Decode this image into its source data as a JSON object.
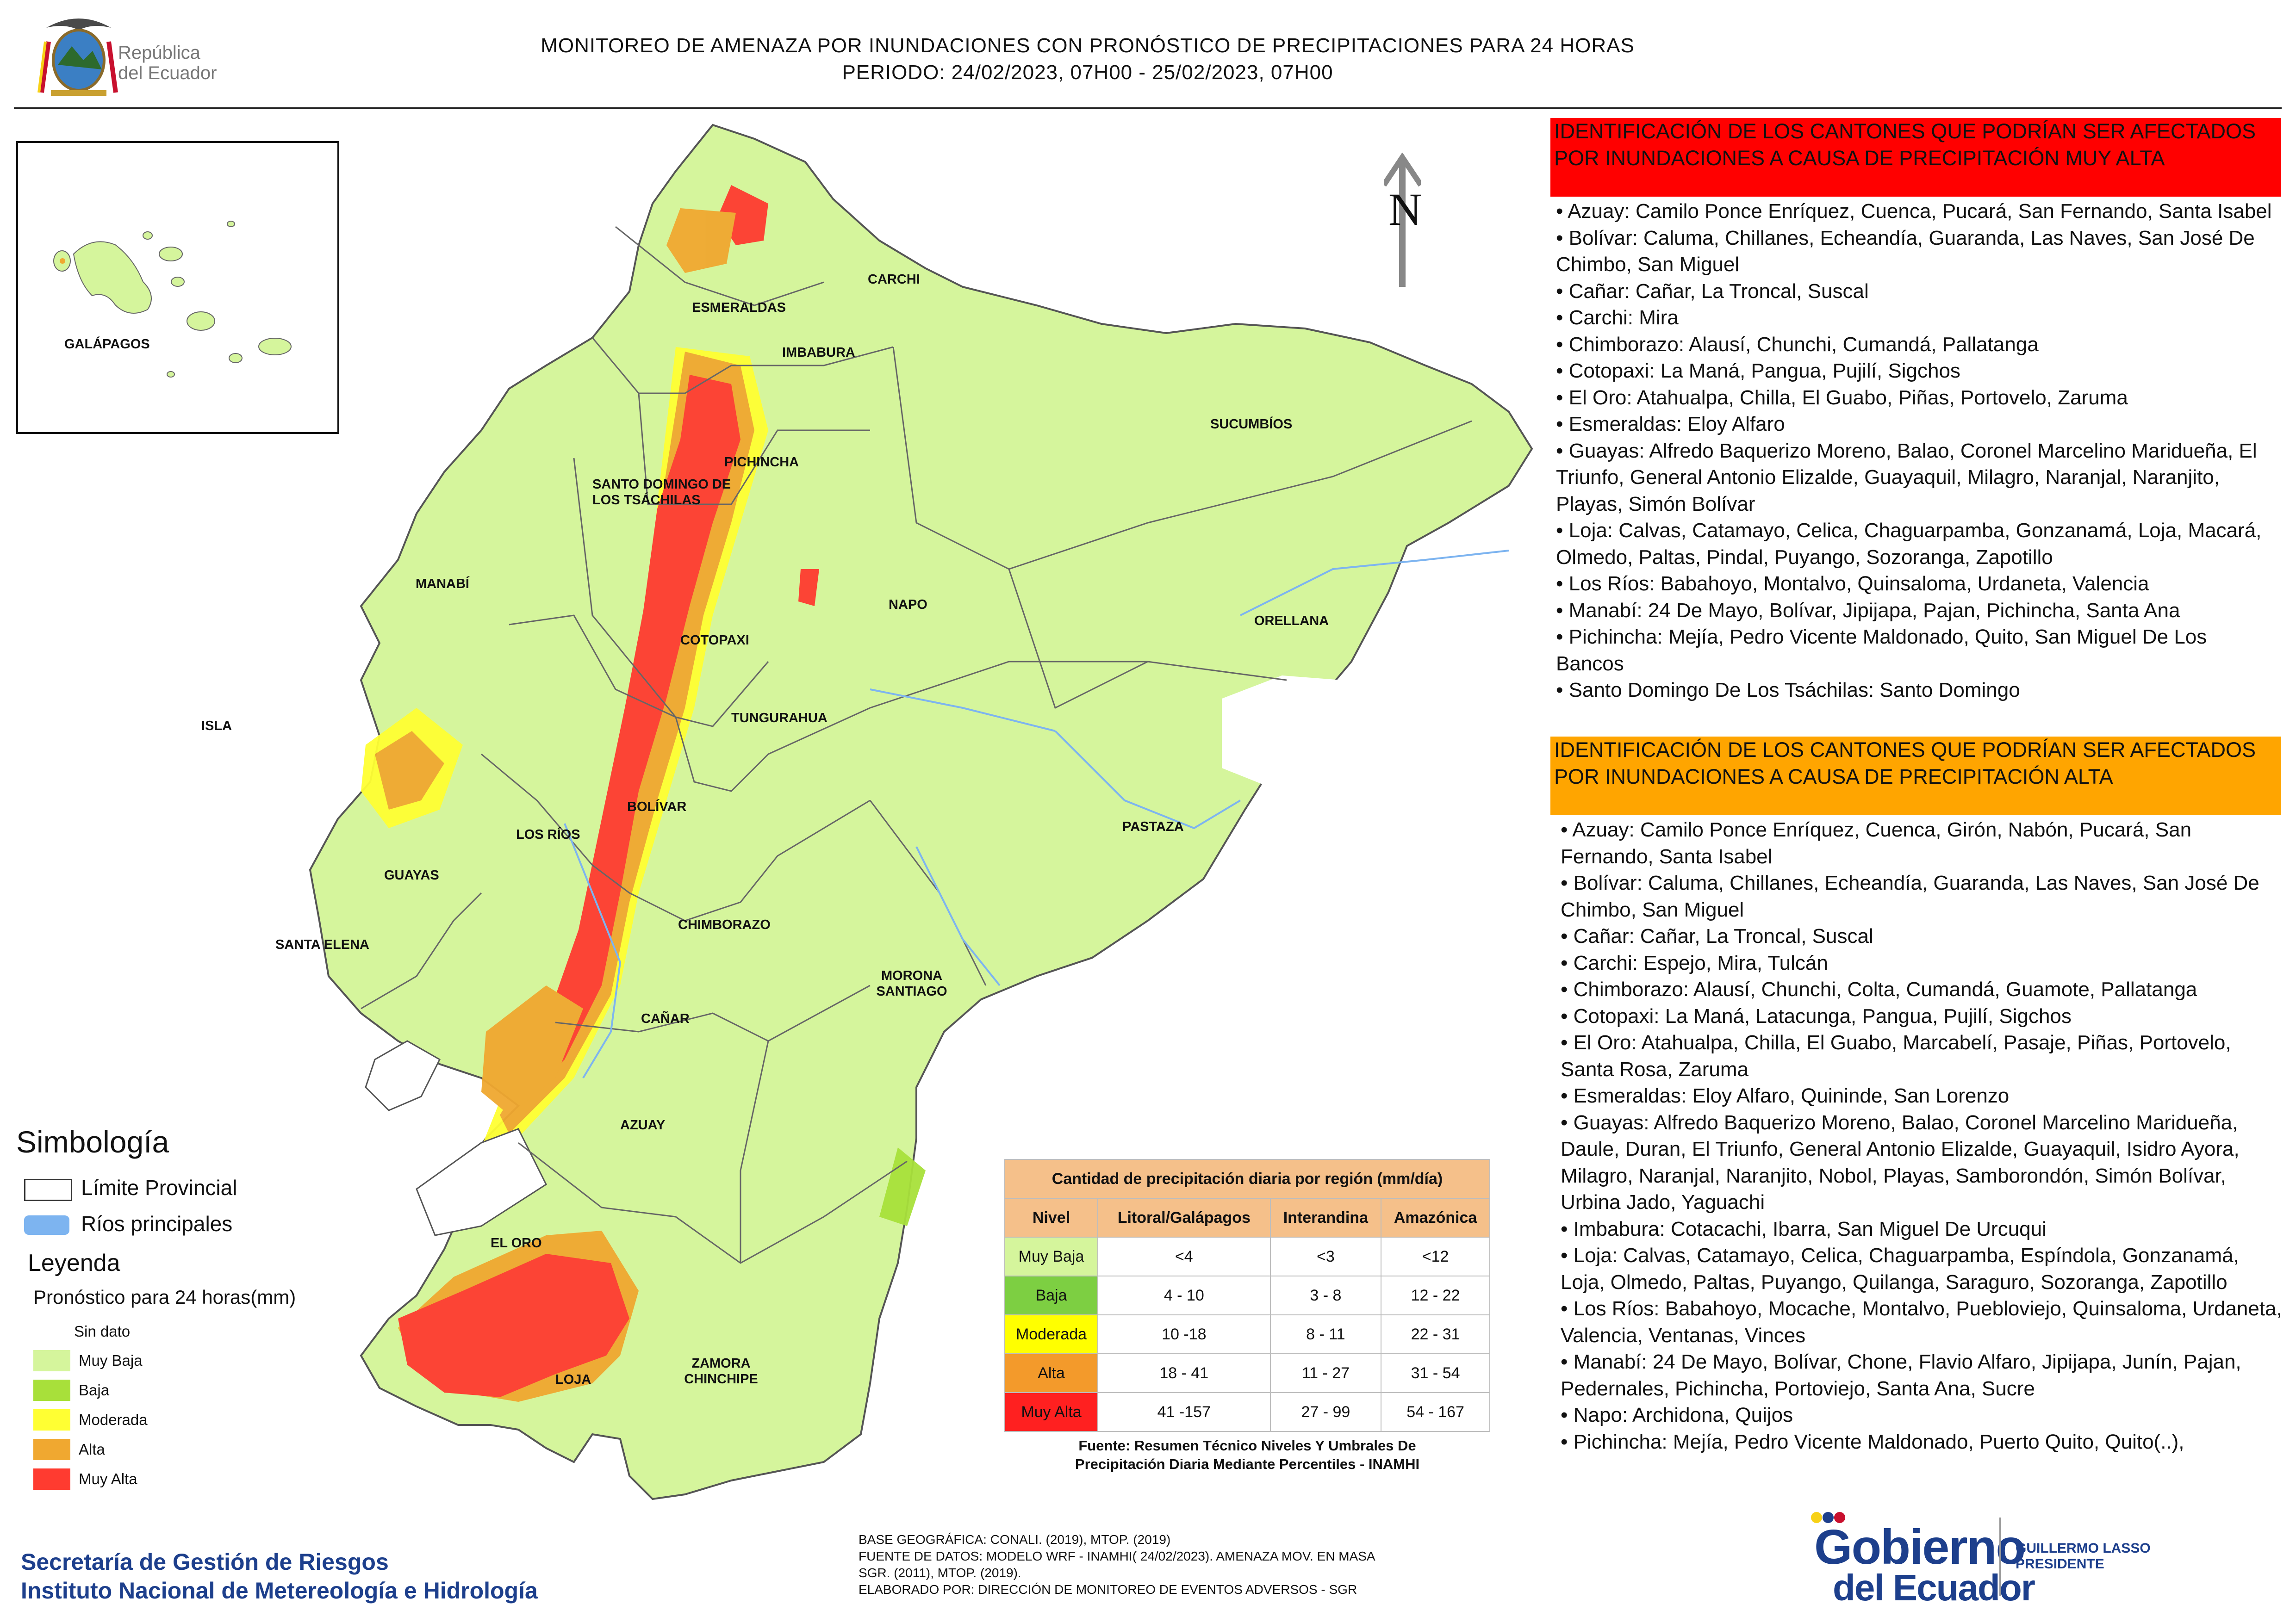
{
  "header": {
    "title_line1": "MONITOREO DE AMENAZA POR INUNDACIONES  CON PRONÓSTICO DE  PRECIPITACIONES PARA 24 HORAS",
    "title_line2": "PERIODO: 24/02/2023, 07H00 - 25/02/2023, 07H00",
    "logo_text_line1": "República",
    "logo_text_line2": "del Ecuador"
  },
  "map": {
    "inset_label": "GALÁPAGOS",
    "north_label": "N",
    "provinces": {
      "carchi": "CARCHI",
      "esmeraldas": "ESMERALDAS",
      "imbabura": "IMBABURA",
      "sucumbios": "SUCUMBÍOS",
      "santo_domingo": "SANTO DOMINGO DE LOS TSÁCHILAS",
      "pichincha": "PICHINCHA",
      "manabi": "MANABÍ",
      "napo": "NAPO",
      "orellana": "ORELLANA",
      "cotopaxi": "COTOPAXI",
      "isla": "ISLA",
      "tungurahua": "TUNGURAHUA",
      "bolivar": "BOLÍVAR",
      "los_rios": "LOS RÍOS",
      "pastaza": "PASTAZA",
      "guayas": "GUAYAS",
      "chimborazo": "CHIMBORAZO",
      "santa_elena": "SANTA ELENA",
      "morona_santiago": "MORONA SANTIAGO",
      "canar": "CAÑAR",
      "azuay": "AZUAY",
      "el_oro": "EL ORO",
      "zamora_chinchipe": "ZAMORA CHINCHIPE",
      "loja": "LOJA"
    },
    "colors": {
      "muy_baja": "#d5f59c",
      "baja": "#a8e03a",
      "moderada": "#ffff33",
      "alta": "#f0a830",
      "muy_alta": "#ff3b30",
      "sin_dato": "#ffffff",
      "rivers": "#7db4f0"
    }
  },
  "legend": {
    "simbologia_title": "Simbología",
    "limite_provincial": "Límite Provincial",
    "rios_principales": "Ríos principales",
    "leyenda_title": "Leyenda",
    "pronostico_title": "Pronóstico para 24 horas(mm)",
    "levels": [
      "Sin dato",
      " Muy Baja",
      "Baja",
      "Moderada",
      "Alta",
      "Muy Alta"
    ]
  },
  "precip_table": {
    "title": "Cantidad de precipitación diaria por región (mm/día)",
    "headers": [
      "Nivel",
      "Litoral/Galápagos",
      "Interandina",
      "Amazónica"
    ],
    "rows": [
      [
        "Muy Baja",
        "<4",
        "<3",
        "<12"
      ],
      [
        "Baja",
        "4 - 10",
        "3 - 8",
        "12 - 22"
      ],
      [
        "Moderada",
        "10 -18",
        "8 - 11",
        "22 - 31"
      ],
      [
        "Alta",
        "18 - 41",
        "11 - 27",
        "31 - 54"
      ],
      [
        "Muy Alta",
        "41 -157",
        "27 - 99",
        "54 - 167"
      ]
    ],
    "source_line1": "Fuente: Resumen Técnico Niveles Y Umbrales De",
    "source_line2": "Precipitación Diaria Mediante Percentiles - INAMHI"
  },
  "base_notes": [
    "BASE GEOGRÁFICA: CONALI. (2019), MTOP. (2019)",
    "FUENTE DE DATOS: MODELO WRF - INAMHI( 24/02/2023).  AMENAZA MOV. EN MASA",
    "SGR. (2011), MTOP. (2019).",
    "ELABORADO POR: DIRECCIÓN DE MONITOREO DE EVENTOS ADVERSOS - SGR"
  ],
  "credits": {
    "line1": "Secretaría de Gestión de Riesgos",
    "line2": "Instituto Nacional de Metereología e Hidrología"
  },
  "panel": {
    "muy_alta_header": "IDENTIFICACIÓN DE LOS CANTONES QUE PODRÍAN SER AFECTADOS POR INUNDACIONES  A CAUSA DE PRECIPITACIÓN MUY ALTA",
    "muy_alta_items": [
      "• Azuay: Camilo Ponce Enríquez, Cuenca, Pucará, San Fernando, Santa Isabel",
      "• Bolívar: Caluma, Chillanes, Echeandía, Guaranda, Las Naves, San José De Chimbo, San Miguel",
      "• Cañar: Cañar, La Troncal, Suscal",
      "• Carchi: Mira",
      "• Chimborazo: Alausí, Chunchi, Cumandá, Pallatanga",
      "• Cotopaxi: La Maná, Pangua, Pujilí, Sigchos",
      "• El Oro: Atahualpa, Chilla, El Guabo, Piñas, Portovelo, Zaruma",
      "• Esmeraldas: Eloy Alfaro",
      "• Guayas: Alfredo Baquerizo Moreno, Balao, Coronel Marcelino Maridueña, El Triunfo, General Antonio Elizalde, Guayaquil, Milagro, Naranjal, Naranjito, Playas, Simón Bolívar",
      "• Loja: Calvas, Catamayo, Celica, Chaguarpamba, Gonzanamá, Loja, Macará, Olmedo, Paltas, Pindal, Puyango, Sozoranga, Zapotillo",
      "• Los Ríos: Babahoyo, Montalvo, Quinsaloma, Urdaneta, Valencia",
      "• Manabí: 24 De Mayo, Bolívar, Jipijapa, Pajan, Pichincha, Santa Ana",
      "• Pichincha: Mejía, Pedro Vicente Maldonado, Quito, San Miguel De Los Bancos",
      "• Santo Domingo De Los Tsáchilas: Santo Domingo"
    ],
    "alta_header": "IDENTIFICACIÓN DE LOS CANTONES QUE  PODRÍAN SER AFECTADOS POR INUNDACIONES  A CAUSA DE PRECIPITACIÓN ALTA",
    "alta_items": [
      "• Azuay: Camilo Ponce Enríquez, Cuenca, Girón, Nabón, Pucará, San Fernando, Santa Isabel",
      "• Bolívar: Caluma, Chillanes, Echeandía, Guaranda, Las Naves, San José De Chimbo, San Miguel",
      "• Cañar: Cañar, La Troncal, Suscal",
      "• Carchi: Espejo, Mira, Tulcán",
      "• Chimborazo: Alausí, Chunchi, Colta, Cumandá, Guamote, Pallatanga",
      "• Cotopaxi: La Maná, Latacunga, Pangua, Pujilí, Sigchos",
      "• El Oro: Atahualpa, Chilla, El Guabo, Marcabelí, Pasaje, Piñas, Portovelo, Santa Rosa, Zaruma",
      "• Esmeraldas: Eloy Alfaro, Quininde, San Lorenzo",
      "• Guayas: Alfredo Baquerizo Moreno, Balao, Coronel Marcelino Maridueña, Daule, Duran, El Triunfo, General Antonio Elizalde, Guayaquil, Isidro Ayora, Milagro, Naranjal, Naranjito, Nobol, Playas, Samborondón, Simón Bolívar, Urbina Jado, Yaguachi",
      "• Imbabura: Cotacachi, Ibarra, San Miguel De Urcuqui",
      "• Loja: Calvas, Catamayo, Celica, Chaguarpamba, Espíndola, Gonzanamá, Loja, Olmedo, Paltas, Puyango, Quilanga, Saraguro, Sozoranga, Zapotillo",
      "• Los Ríos: Babahoyo, Mocache, Montalvo, Puebloviejo, Quinsaloma, Urdaneta, Valencia, Ventanas, Vinces",
      "• Manabí: 24 De Mayo, Bolívar, Chone, Flavio Alfaro, Jipijapa, Junín, Pajan, Pedernales, Pichincha, Portoviejo, Santa Ana, Sucre",
      "• Napo: Archidona, Quijos",
      "• Pichincha: Mejía, Pedro Vicente Maldonado, Puerto Quito, Quito(..),"
    ]
  },
  "gobierno": {
    "line1": "Gobierno",
    "line2": "del Ecuador",
    "pres_line1": "GUILLERMO LASSO",
    "pres_line2": "PRESIDENTE"
  }
}
